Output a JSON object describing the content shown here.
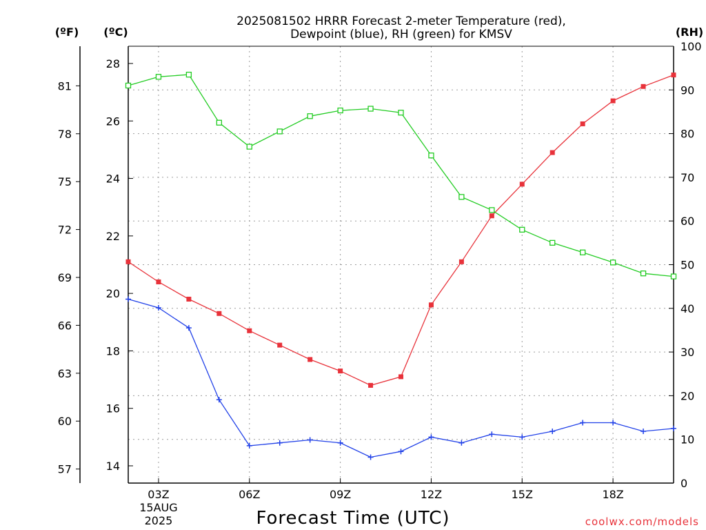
{
  "chart_data": {
    "type": "line",
    "title_lines": [
      "2025081502 HRRR Forecast 2-meter Temperature (red),",
      "Dewpoint (blue), RH (green) for KMSV"
    ],
    "xlabel": "Forecast Time (UTC)",
    "credit": "coolwx.com/models",
    "x_hours": [
      2,
      3,
      4,
      5,
      6,
      7,
      8,
      9,
      10,
      11,
      12,
      13,
      14,
      15,
      16,
      17,
      18,
      19,
      20
    ],
    "xlim": [
      2,
      20
    ],
    "x_ticks": [
      {
        "hour": 3,
        "label": "03Z",
        "sub1": "15AUG",
        "sub2": "2025"
      },
      {
        "hour": 6,
        "label": "06Z"
      },
      {
        "hour": 9,
        "label": "09Z"
      },
      {
        "hour": 12,
        "label": "12Z"
      },
      {
        "hour": 15,
        "label": "15Z"
      },
      {
        "hour": 18,
        "label": "18Z"
      }
    ],
    "left_c_axis": {
      "unit": "(ºC)",
      "range": [
        13.4,
        28.6
      ],
      "ticks": [
        14,
        16,
        18,
        20,
        22,
        24,
        26,
        28
      ],
      "labels": [
        "14",
        "16",
        "18",
        "20",
        "22",
        "24",
        "26",
        "28"
      ]
    },
    "left_f_axis": {
      "unit": "(ºF)",
      "ticks": [
        57,
        60,
        63,
        66,
        69,
        72,
        75,
        78,
        81
      ],
      "labels": [
        "57",
        "60",
        "63",
        "66",
        "69",
        "72",
        "75",
        "78",
        "81"
      ]
    },
    "right_rh_axis": {
      "unit": "(RH)",
      "range": [
        0,
        100
      ],
      "ticks": [
        0,
        10,
        20,
        30,
        40,
        50,
        60,
        70,
        80,
        90,
        100
      ],
      "labels": [
        "0",
        "10",
        "20",
        "30",
        "40",
        "50",
        "60",
        "70",
        "80",
        "90",
        "100"
      ]
    },
    "grid": true,
    "series": [
      {
        "key": "temp",
        "axis": "c",
        "marker": "filled-square",
        "color": "#e8323a",
        "values": [
          21.1,
          20.4,
          19.8,
          19.3,
          18.7,
          18.2,
          17.7,
          17.3,
          16.8,
          17.1,
          19.6,
          21.1,
          22.7,
          23.8,
          24.9,
          25.9,
          26.7,
          27.2,
          27.6
        ]
      },
      {
        "key": "dewpoint",
        "axis": "c",
        "marker": "plus",
        "color": "#2040e8",
        "values": [
          19.8,
          19.5,
          18.8,
          16.3,
          14.7,
          14.8,
          14.9,
          14.8,
          14.3,
          14.5,
          15.0,
          14.8,
          15.1,
          15.0,
          15.2,
          15.5,
          15.5,
          15.2,
          15.3
        ]
      },
      {
        "key": "rh",
        "axis": "rh",
        "marker": "open-square",
        "color": "#22cc22",
        "values": [
          91,
          93,
          93.5,
          82.5,
          77,
          80.5,
          84,
          85.3,
          85.7,
          84.8,
          75,
          65.5,
          62.5,
          58,
          55,
          52.8,
          50.5,
          48,
          47.3
        ]
      }
    ]
  }
}
